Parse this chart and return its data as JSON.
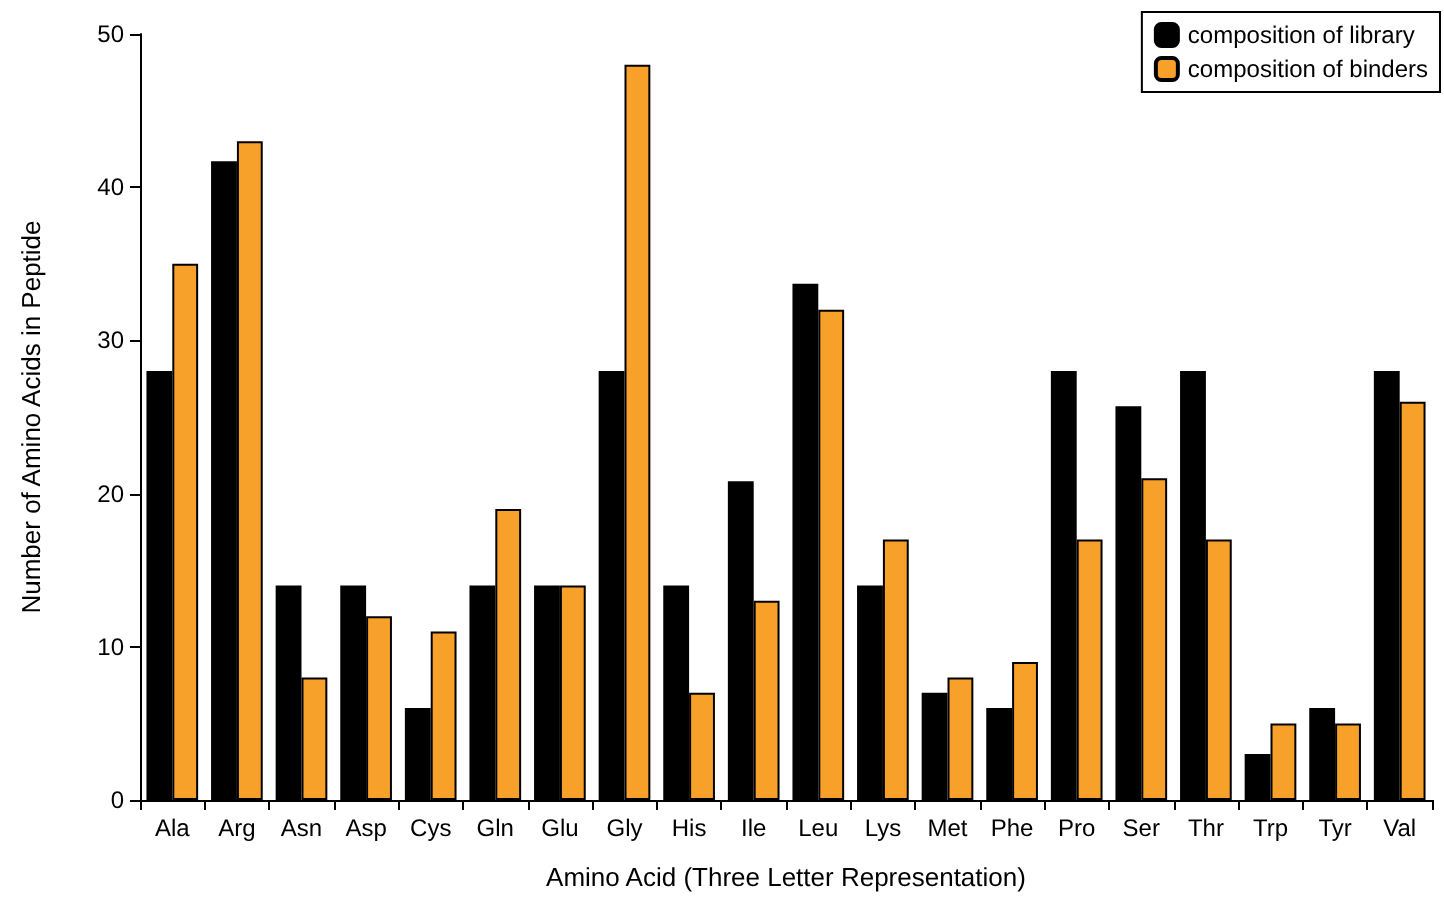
{
  "chart_data": {
    "type": "bar",
    "xlabel": "Amino Acid (Three Letter Representation)",
    "ylabel": "Number of Amino Acids in Peptide",
    "categories": [
      "Ala",
      "Arg",
      "Asn",
      "Asp",
      "Cys",
      "Gln",
      "Glu",
      "Gly",
      "His",
      "Ile",
      "Leu",
      "Lys",
      "Met",
      "Phe",
      "Pro",
      "Ser",
      "Thr",
      "Trp",
      "Tyr",
      "Val"
    ],
    "series": [
      {
        "name": "composition of library",
        "color": "#000000",
        "values": [
          28,
          41.7,
          14,
          14,
          6,
          14,
          14,
          28,
          14,
          20.8,
          33.7,
          14,
          7,
          6,
          28,
          25.7,
          28,
          3,
          6,
          28
        ]
      },
      {
        "name": "composition of binders",
        "color": "#f7a02a",
        "values": [
          35,
          43,
          8,
          12,
          11,
          19,
          14,
          48,
          7,
          13,
          32,
          17,
          8,
          9,
          17,
          21,
          17,
          5,
          5,
          26
        ]
      }
    ],
    "ylim": [
      0,
      50
    ],
    "yticks": [
      0,
      10,
      20,
      30,
      40,
      50
    ],
    "grid": false,
    "legend": "top right"
  }
}
